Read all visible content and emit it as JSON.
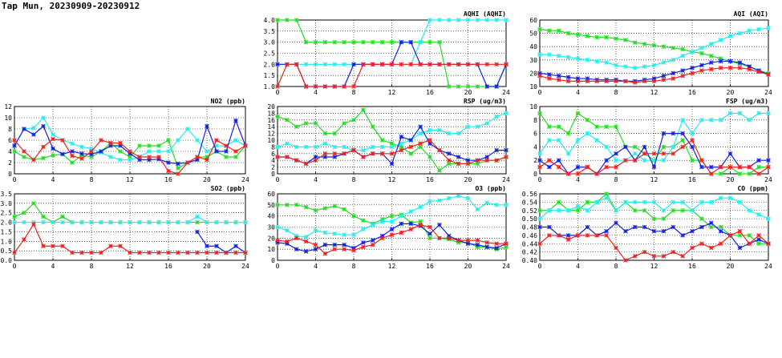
{
  "page_title": "Tap Mun, 20230909-20230912",
  "colors": {
    "green": "#22dd22",
    "cyan": "#22eeee",
    "blue": "#1122dd",
    "red": "#ee2222",
    "grid": "#000000"
  },
  "chart_data": [
    {
      "id": "aqhi",
      "type": "line",
      "title": "AQHI (AQHI)",
      "ylim": [
        1,
        4
      ],
      "yticks": [
        "1.0",
        "1.5",
        "2.0",
        "2.5",
        "3.0",
        "3.5",
        "4.0"
      ],
      "xlim": [
        0,
        24
      ],
      "xticks": [
        "0",
        "4",
        "8",
        "12",
        "16",
        "20",
        "24"
      ],
      "series": [
        {
          "color": "green",
          "values": [
            4,
            4,
            4,
            3,
            3,
            3,
            3,
            3,
            3,
            3,
            3,
            3,
            3,
            3,
            3,
            3,
            3,
            3,
            1,
            1,
            1,
            1,
            1,
            1,
            2
          ]
        },
        {
          "color": "cyan",
          "values": [
            2,
            2,
            2,
            2,
            2,
            2,
            2,
            2,
            2,
            2,
            2,
            2,
            2,
            2,
            2,
            3,
            4,
            4,
            4,
            4,
            4,
            4,
            4,
            4,
            4
          ]
        },
        {
          "color": "blue",
          "values": [
            2,
            2,
            2,
            1,
            1,
            1,
            1,
            1,
            2,
            2,
            2,
            2,
            2,
            3,
            3,
            2,
            2,
            2,
            2,
            2,
            2,
            2,
            1,
            1,
            2
          ]
        },
        {
          "color": "red",
          "values": [
            1,
            2,
            2,
            1,
            1,
            1,
            1,
            1,
            1,
            2,
            2,
            2,
            2,
            2,
            2,
            2,
            2,
            2,
            2,
            2,
            2,
            2,
            2,
            2,
            2
          ]
        }
      ]
    },
    {
      "id": "aqi",
      "type": "line",
      "title": "AQI (AQI)",
      "ylim": [
        10,
        60
      ],
      "yticks": [
        "10",
        "20",
        "30",
        "40",
        "50",
        "60"
      ],
      "xlim": [
        0,
        24
      ],
      "xticks": [
        "0",
        "4",
        "8",
        "12",
        "16",
        "20",
        "24"
      ],
      "series": [
        {
          "color": "green",
          "values": [
            53,
            52,
            52,
            50,
            49,
            48,
            47,
            47,
            46,
            45,
            43,
            42,
            41,
            40,
            39,
            38,
            36,
            35,
            33,
            31,
            29,
            27,
            25,
            22,
            20
          ]
        },
        {
          "color": "cyan",
          "values": [
            34,
            34,
            33,
            32,
            31,
            30,
            29,
            28,
            26,
            25,
            24,
            25,
            26,
            28,
            30,
            33,
            36,
            39,
            42,
            45,
            48,
            50,
            52,
            53,
            54
          ]
        },
        {
          "color": "blue",
          "values": [
            20,
            19,
            18,
            17,
            16,
            16,
            15,
            15,
            15,
            14,
            14,
            15,
            16,
            18,
            20,
            22,
            24,
            26,
            28,
            29,
            29,
            28,
            25,
            22,
            19
          ]
        },
        {
          "color": "red",
          "values": [
            18,
            16,
            15,
            14,
            14,
            14,
            14,
            14,
            14,
            14,
            13,
            14,
            14,
            15,
            16,
            18,
            20,
            22,
            23,
            24,
            24,
            24,
            23,
            21,
            19
          ]
        }
      ]
    },
    {
      "id": "no2",
      "type": "line",
      "title": "NO2 (ppb)",
      "ylim": [
        0,
        12
      ],
      "yticks": [
        "0",
        "2",
        "4",
        "6",
        "8",
        "10",
        "12"
      ],
      "xlim": [
        0,
        24
      ],
      "xticks": [
        "0",
        "4",
        "8",
        "12",
        "16",
        "20",
        "24"
      ],
      "series": [
        {
          "color": "green",
          "values": [
            4,
            3,
            2.5,
            2.8,
            3.3,
            3.5,
            2,
            3.3,
            3,
            4,
            5.5,
            4,
            3,
            5,
            5,
            5,
            6,
            1,
            2,
            3,
            3,
            4,
            3,
            3,
            5
          ]
        },
        {
          "color": "cyan",
          "values": [
            5,
            8,
            8.2,
            10,
            7,
            6,
            5.4,
            4.8,
            4.5,
            3.8,
            3,
            2.5,
            2.5,
            3,
            4,
            4,
            4,
            6,
            8,
            6,
            4,
            5,
            5,
            6,
            5
          ]
        },
        {
          "color": "blue",
          "values": [
            5,
            8,
            7,
            8.5,
            4.5,
            3.5,
            4,
            3.6,
            3.5,
            4,
            5,
            5,
            3.6,
            2.5,
            2.5,
            2.6,
            2,
            1.8,
            2,
            2.5,
            8.5,
            4,
            4,
            9.5,
            5
          ]
        },
        {
          "color": "red",
          "values": [
            6,
            4,
            2.5,
            4.8,
            6.2,
            6,
            3.2,
            2.7,
            4,
            6,
            5.5,
            5.5,
            4,
            3,
            3,
            3,
            0.5,
            0,
            2,
            3,
            2.5,
            6,
            5,
            4,
            5
          ]
        }
      ]
    },
    {
      "id": "rsp",
      "type": "line",
      "title": "RSP (ug/m3)",
      "ylim": [
        0,
        20
      ],
      "yticks": [
        "0",
        "2",
        "4",
        "6",
        "8",
        "10",
        "12",
        "14",
        "16",
        "18",
        "20"
      ],
      "xlim": [
        0,
        24
      ],
      "xticks": [
        "0",
        "4",
        "8",
        "12",
        "16",
        "20",
        "24"
      ],
      "series": [
        {
          "color": "green",
          "values": [
            17,
            16,
            14,
            15,
            15,
            12,
            12,
            15,
            16,
            19,
            14,
            10,
            9,
            8,
            6,
            8,
            5,
            1,
            3,
            3,
            3,
            3,
            4,
            4,
            5
          ]
        },
        {
          "color": "cyan",
          "values": [
            8,
            9,
            8,
            8,
            8,
            9,
            8,
            8,
            7,
            7,
            8,
            8,
            8,
            9,
            10,
            12,
            13,
            13,
            12,
            12,
            14,
            14,
            15,
            17,
            18
          ]
        },
        {
          "color": "blue",
          "values": [
            5,
            5,
            4,
            3,
            5,
            5,
            5,
            6,
            7,
            5,
            6,
            6,
            3,
            11,
            10,
            14,
            9,
            7,
            6,
            5,
            4,
            4,
            5,
            7,
            7
          ]
        },
        {
          "color": "red",
          "values": [
            5,
            5,
            4,
            3,
            4,
            6,
            6,
            6,
            7,
            5,
            6,
            6,
            6,
            7,
            8,
            9,
            10,
            7,
            4,
            3,
            3,
            4,
            4,
            4,
            5
          ]
        }
      ]
    },
    {
      "id": "fsp",
      "type": "line",
      "title": "FSP (ug/m3)",
      "ylim": [
        0,
        10
      ],
      "yticks": [
        "0",
        "2",
        "4",
        "6",
        "8",
        "10"
      ],
      "xlim": [
        0,
        24
      ],
      "xticks": [
        "0",
        "4",
        "8",
        "12",
        "16",
        "20",
        "24"
      ],
      "series": [
        {
          "color": "green",
          "values": [
            9,
            7,
            7,
            6,
            9,
            8,
            7,
            7,
            7,
            4,
            4,
            3,
            2,
            4,
            4,
            5,
            2,
            2,
            0,
            0,
            1,
            0,
            0,
            1,
            1
          ]
        },
        {
          "color": "cyan",
          "values": [
            3,
            5,
            5,
            3,
            5,
            6,
            5,
            4,
            2,
            2,
            3,
            2,
            2,
            2,
            4,
            8,
            6,
            8,
            8,
            8,
            9,
            9,
            8,
            9,
            9
          ]
        },
        {
          "color": "blue",
          "values": [
            2,
            1,
            2,
            0,
            1,
            1,
            0,
            2,
            3,
            4,
            2,
            4,
            1,
            6,
            6,
            6,
            4,
            1,
            1,
            1,
            3,
            1,
            1,
            2,
            2
          ]
        },
        {
          "color": "red",
          "values": [
            1,
            2,
            1,
            0,
            0,
            1,
            0,
            1,
            1,
            2,
            2,
            3,
            3,
            3,
            3,
            4,
            5,
            2,
            0,
            1,
            1,
            1,
            1,
            0,
            1
          ]
        }
      ]
    },
    {
      "id": "so2",
      "type": "line",
      "title": "SO2 (ppb)",
      "ylim": [
        0,
        3.5
      ],
      "yticks": [
        "0.0",
        "0.5",
        "1.0",
        "1.5",
        "2.0",
        "2.5",
        "3.0",
        "3.5"
      ],
      "xlim": [
        0,
        24
      ],
      "xticks": [
        "0",
        "4",
        "8",
        "12",
        "16",
        "20",
        "24"
      ],
      "series": [
        {
          "color": "green",
          "values": [
            2.3,
            2.5,
            3.0,
            2.3,
            2.0,
            2.3,
            2.0,
            2.0,
            2.0,
            2.0,
            2.0,
            2.0,
            2.0,
            2.0,
            2.0,
            2.0,
            2.0,
            2.0,
            2.0,
            2.0,
            2.0,
            2.0,
            2.0,
            2.0,
            2.0
          ]
        },
        {
          "color": "cyan",
          "values": [
            2.0,
            2.0,
            2.0,
            2.0,
            2.0,
            2.0,
            2.0,
            2.0,
            2.0,
            2.0,
            2.0,
            2.0,
            2.0,
            2.0,
            2.0,
            2.0,
            2.0,
            2.0,
            2.0,
            2.3,
            2.0,
            2.0,
            2.0,
            2.0,
            2.0
          ]
        },
        {
          "color": "blue",
          "values": [
            null,
            null,
            null,
            null,
            null,
            null,
            null,
            null,
            null,
            null,
            null,
            null,
            null,
            null,
            null,
            null,
            null,
            null,
            null,
            1.5,
            0.75,
            0.75,
            0.4,
            0.75,
            0.4
          ]
        },
        {
          "color": "red",
          "values": [
            0.4,
            1.1,
            1.9,
            0.75,
            0.75,
            0.75,
            0.4,
            0.4,
            0.4,
            0.4,
            0.75,
            0.75,
            0.4,
            0.4,
            0.4,
            0.4,
            0.4,
            0.4,
            0.4,
            0.4,
            0.4,
            0.4,
            0.4,
            0.4,
            0.4
          ]
        }
      ]
    },
    {
      "id": "o3",
      "type": "line",
      "title": "O3 (ppb)",
      "ylim": [
        0,
        60
      ],
      "yticks": [
        "0",
        "10",
        "20",
        "30",
        "40",
        "50",
        "60"
      ],
      "xlim": [
        0,
        24
      ],
      "xticks": [
        "0",
        "4",
        "8",
        "12",
        "16",
        "20",
        "24"
      ],
      "series": [
        {
          "color": "green",
          "values": [
            50,
            50,
            50,
            48,
            45,
            47,
            49,
            46,
            40,
            36,
            33,
            37,
            40,
            41,
            34,
            35,
            20,
            20,
            19,
            16,
            16,
            12,
            12,
            10,
            12
          ]
        },
        {
          "color": "cyan",
          "values": [
            30,
            27,
            22,
            21,
            27,
            25,
            24,
            23,
            23,
            28,
            32,
            35,
            35,
            40,
            44,
            48,
            53,
            54,
            56,
            58,
            56,
            46,
            52,
            50,
            50
          ]
        },
        {
          "color": "blue",
          "values": [
            16,
            15,
            10,
            8,
            10,
            14,
            14,
            14,
            11,
            16,
            18,
            22,
            28,
            33,
            33,
            31,
            24,
            32,
            22,
            18,
            15,
            14,
            12,
            11,
            15
          ]
        },
        {
          "color": "red",
          "values": [
            18,
            17,
            20,
            17,
            14,
            6,
            10,
            10,
            9,
            12,
            14,
            20,
            23,
            25,
            28,
            32,
            30,
            20,
            20,
            18,
            18,
            18,
            16,
            15,
            15
          ]
        }
      ]
    },
    {
      "id": "co",
      "type": "line",
      "title": "CO (ppm)",
      "ylim": [
        0.4,
        0.56
      ],
      "yticks": [
        "0.40",
        "0.42",
        "0.44",
        "0.46",
        "0.48",
        "0.50",
        "0.52",
        "0.54",
        "0.56"
      ],
      "xlim": [
        0,
        24
      ],
      "xticks": [
        "0",
        "4",
        "8",
        "12",
        "16",
        "20",
        "24"
      ],
      "series": [
        {
          "color": "green",
          "values": [
            0.52,
            0.52,
            0.54,
            0.52,
            0.52,
            0.54,
            0.54,
            0.56,
            0.52,
            0.54,
            0.52,
            0.52,
            0.5,
            0.5,
            0.52,
            0.52,
            0.52,
            0.5,
            0.48,
            0.48,
            0.46,
            0.46,
            0.46,
            0.44,
            0.44
          ]
        },
        {
          "color": "cyan",
          "values": [
            0.5,
            0.52,
            0.52,
            0.52,
            0.53,
            0.52,
            0.54,
            0.55,
            0.52,
            0.54,
            0.54,
            0.54,
            0.54,
            0.52,
            0.54,
            0.54,
            0.52,
            0.54,
            0.54,
            0.55,
            0.55,
            0.54,
            0.52,
            0.51,
            0.5
          ]
        },
        {
          "color": "blue",
          "values": [
            0.48,
            0.48,
            0.46,
            0.46,
            0.46,
            0.48,
            0.46,
            0.47,
            0.49,
            0.47,
            0.48,
            0.48,
            0.47,
            0.47,
            0.48,
            0.46,
            0.47,
            0.48,
            0.49,
            0.47,
            0.46,
            0.43,
            0.44,
            0.45,
            0.44
          ]
        },
        {
          "color": "red",
          "values": [
            0.44,
            0.46,
            0.46,
            0.45,
            0.46,
            0.46,
            0.46,
            0.46,
            0.43,
            0.4,
            0.41,
            0.42,
            0.41,
            0.41,
            0.42,
            0.41,
            0.43,
            0.44,
            0.43,
            0.44,
            0.46,
            0.47,
            0.44,
            0.46,
            0.44
          ]
        }
      ]
    }
  ]
}
